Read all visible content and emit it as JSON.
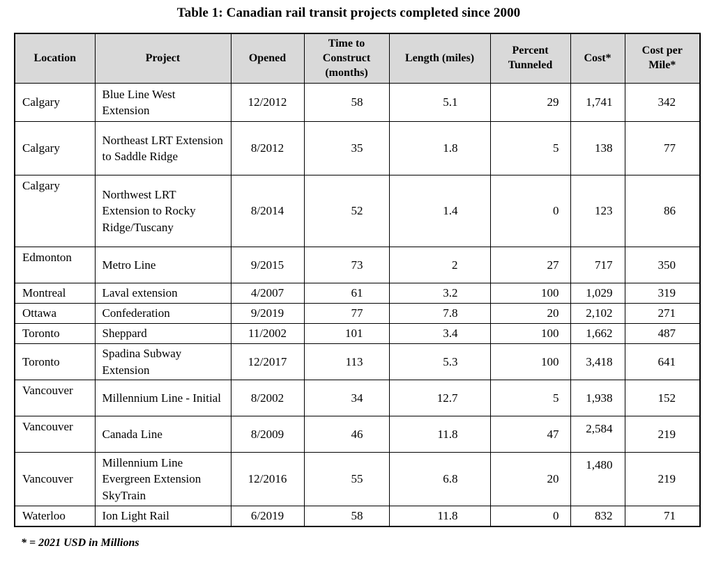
{
  "title": "Table 1: Canadian rail transit projects completed since 2000",
  "footnote": "* = 2021 USD in Millions",
  "colors": {
    "header_bg": "#d9d9d9",
    "border": "#000000",
    "text": "#000000"
  },
  "table": {
    "columns": [
      {
        "label": "Location"
      },
      {
        "label": "Project"
      },
      {
        "label": "Opened"
      },
      {
        "label": "Time to Construct (months)"
      },
      {
        "label": "Length (miles)"
      },
      {
        "label": "Percent Tunneled"
      },
      {
        "label": "Cost*"
      },
      {
        "label": "Cost per Mile*"
      }
    ],
    "rows": [
      {
        "location": "Calgary",
        "project": "Blue Line West Extension",
        "opened": "12/2012",
        "time_to_construct": "58",
        "length": "5.1",
        "percent_tunneled": "29",
        "cost": "1,741",
        "cost_per_mile": "342"
      },
      {
        "location": "Calgary",
        "project": "Northeast LRT Extension to Saddle Ridge",
        "opened": "8/2012",
        "time_to_construct": "35",
        "length": "1.8",
        "percent_tunneled": "5",
        "cost": "138",
        "cost_per_mile": "77"
      },
      {
        "location": "Calgary",
        "project": "Northwest LRT Extension to Rocky Ridge/Tuscany",
        "opened": "8/2014",
        "time_to_construct": "52",
        "length": "1.4",
        "percent_tunneled": "0",
        "cost": "123",
        "cost_per_mile": "86"
      },
      {
        "location": "Edmonton",
        "project": "Metro Line",
        "opened": "9/2015",
        "time_to_construct": "73",
        "length": "2",
        "percent_tunneled": "27",
        "cost": "717",
        "cost_per_mile": "350"
      },
      {
        "location": "Montreal",
        "project": "Laval extension",
        "opened": "4/2007",
        "time_to_construct": "61",
        "length": "3.2",
        "percent_tunneled": "100",
        "cost": "1,029",
        "cost_per_mile": "319"
      },
      {
        "location": "Ottawa",
        "project": "Confederation",
        "opened": "9/2019",
        "time_to_construct": "77",
        "length": "7.8",
        "percent_tunneled": "20",
        "cost": "2,102",
        "cost_per_mile": "271"
      },
      {
        "location": "Toronto",
        "project": "Sheppard",
        "opened": "11/2002",
        "time_to_construct": "101",
        "length": "3.4",
        "percent_tunneled": "100",
        "cost": "1,662",
        "cost_per_mile": "487"
      },
      {
        "location": "Toronto",
        "project": "Spadina Subway Extension",
        "opened": "12/2017",
        "time_to_construct": "113",
        "length": "5.3",
        "percent_tunneled": "100",
        "cost": "3,418",
        "cost_per_mile": "641"
      },
      {
        "location": "Vancouver",
        "project": "Millennium Line - Initial",
        "opened": "8/2002",
        "time_to_construct": "34",
        "length": "12.7",
        "percent_tunneled": "5",
        "cost": "1,938",
        "cost_per_mile": "152"
      },
      {
        "location": "Vancouver",
        "project": "Canada Line",
        "opened": "8/2009",
        "time_to_construct": "46",
        "length": "11.8",
        "percent_tunneled": "47",
        "cost": "2,584",
        "cost_per_mile": "219"
      },
      {
        "location": "Vancouver",
        "project": "Millennium Line Evergreen Extension SkyTrain",
        "opened": "12/2016",
        "time_to_construct": "55",
        "length": "6.8",
        "percent_tunneled": "20",
        "cost": "1,480",
        "cost_per_mile": "219"
      },
      {
        "location": "Waterloo",
        "project": "Ion Light Rail",
        "opened": "6/2019",
        "time_to_construct": "58",
        "length": "11.8",
        "percent_tunneled": "0",
        "cost": "832",
        "cost_per_mile": "71"
      }
    ]
  }
}
